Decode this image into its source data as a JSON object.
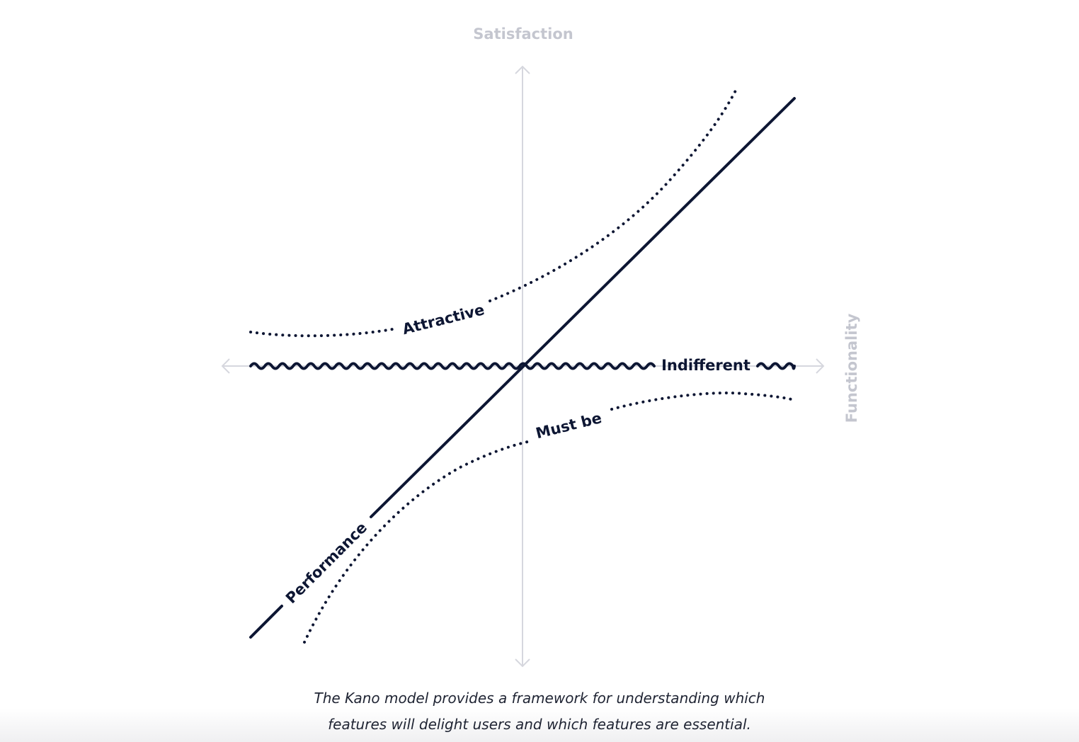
{
  "diagram": {
    "y_axis_label": "Satisfaction",
    "x_axis_label": "Functionality",
    "curves": {
      "attractive": "Attractive",
      "performance": "Performance",
      "indifferent": "Indifferent",
      "must_be": "Must be"
    }
  },
  "caption": {
    "line1": "The Kano model provides a framework for understanding which",
    "line2": "features will delight users and which features are essential."
  },
  "colors": {
    "curve": "#0d1633",
    "axis": "#d6d7de",
    "axis_label": "#c4c6cf"
  }
}
